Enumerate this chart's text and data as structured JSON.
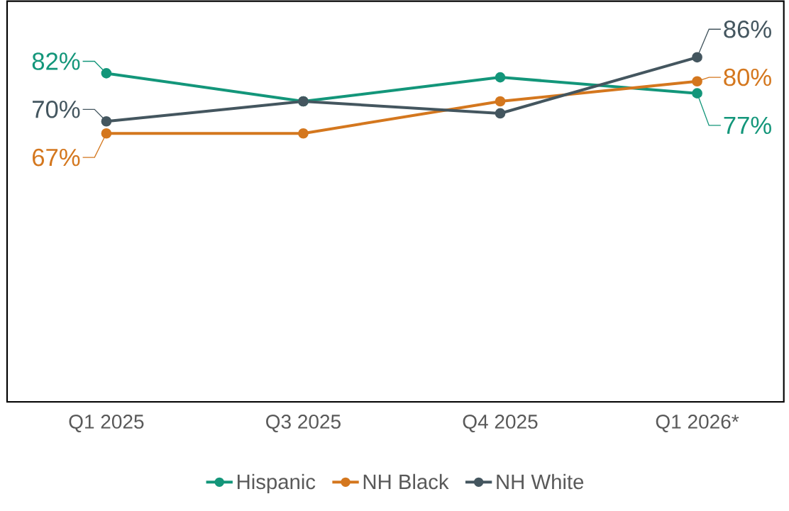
{
  "chart_data": {
    "type": "line",
    "categories": [
      "Q1 2025",
      "Q3 2025",
      "Q4 2025",
      "Q1 2026*"
    ],
    "series": [
      {
        "name": "Hispanic",
        "color": "#13967a",
        "values": [
          82,
          75,
          81,
          77
        ],
        "value_labels": [
          "82%",
          null,
          null,
          "77%"
        ]
      },
      {
        "name": "NH Black",
        "color": "#d4771e",
        "values": [
          67,
          67,
          75,
          80
        ],
        "value_labels": [
          "67%",
          null,
          null,
          "80%"
        ]
      },
      {
        "name": "NH White",
        "color": "#44565f",
        "values": [
          70,
          75,
          72,
          86
        ],
        "value_labels": [
          "70%",
          null,
          null,
          "86%"
        ]
      }
    ],
    "ylim": [
      0,
      100
    ],
    "tick_labels": "x",
    "grid": false,
    "legend": "bottom",
    "marker": "circle",
    "line_style": "solid"
  }
}
